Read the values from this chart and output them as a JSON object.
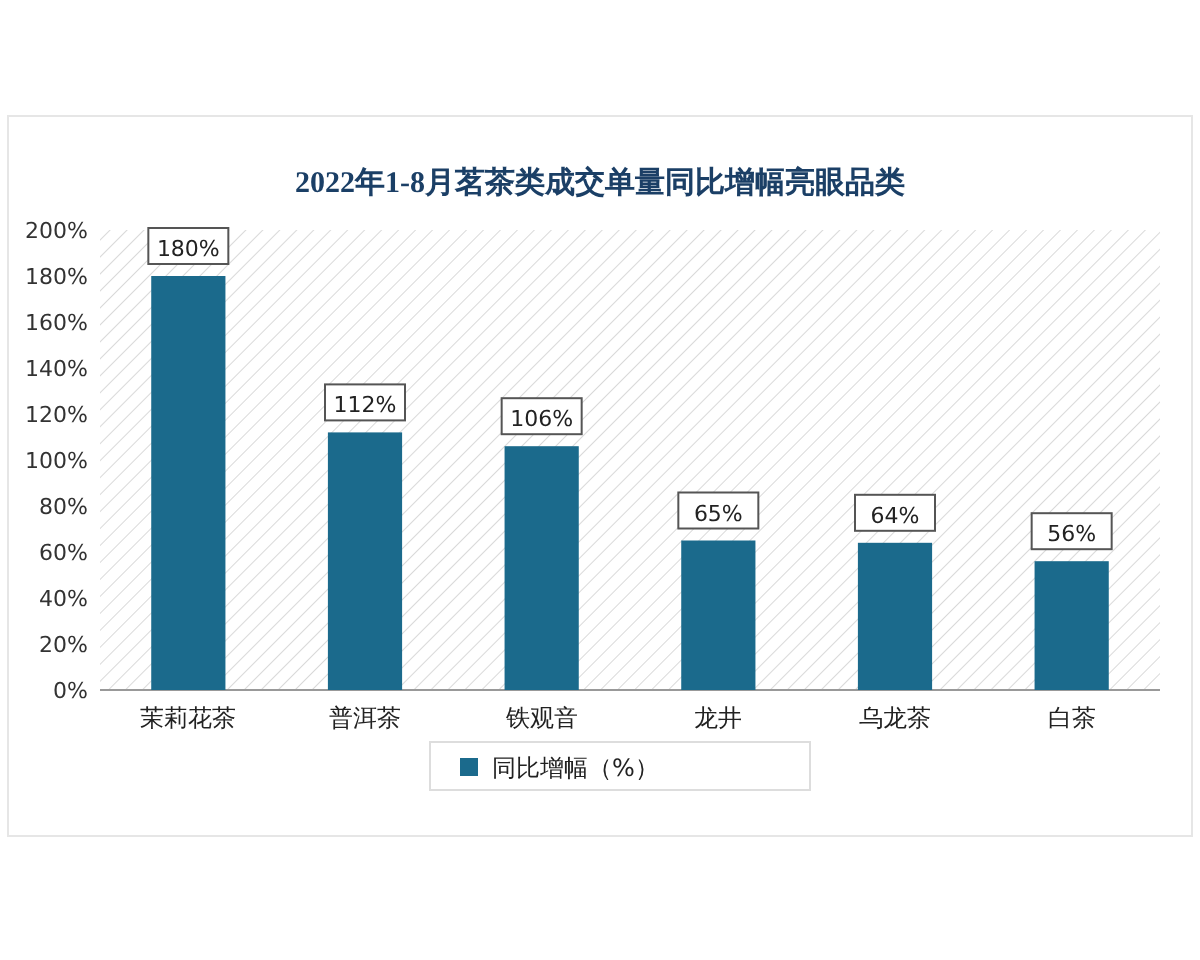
{
  "chart_data": {
    "type": "bar",
    "title": "2022年1-8月茗茶类成交单量同比增幅亮眼品类",
    "categories": [
      "茉莉花茶",
      "普洱茶",
      "铁观音",
      "龙井",
      "乌龙茶",
      "白茶"
    ],
    "series": [
      {
        "name": "同比增幅（%）",
        "color": "#1b6a8c",
        "values": [
          180,
          112,
          106,
          65,
          64,
          56
        ],
        "value_labels": [
          "180%",
          "112%",
          "106%",
          "65%",
          "64%",
          "56%"
        ]
      }
    ],
    "ylim": [
      0,
      200
    ],
    "yticks": [
      {
        "value": 0,
        "label": "0%"
      },
      {
        "value": 20,
        "label": "20%"
      },
      {
        "value": 40,
        "label": "40%"
      },
      {
        "value": 60,
        "label": "60%"
      },
      {
        "value": 80,
        "label": "80%"
      },
      {
        "value": 100,
        "label": "100%"
      },
      {
        "value": 120,
        "label": "120%"
      },
      {
        "value": 140,
        "label": "140%"
      },
      {
        "value": 160,
        "label": "160%"
      },
      {
        "value": 180,
        "label": "180%"
      },
      {
        "value": 200,
        "label": "200%"
      }
    ],
    "grid": false,
    "legend": "bottom"
  }
}
